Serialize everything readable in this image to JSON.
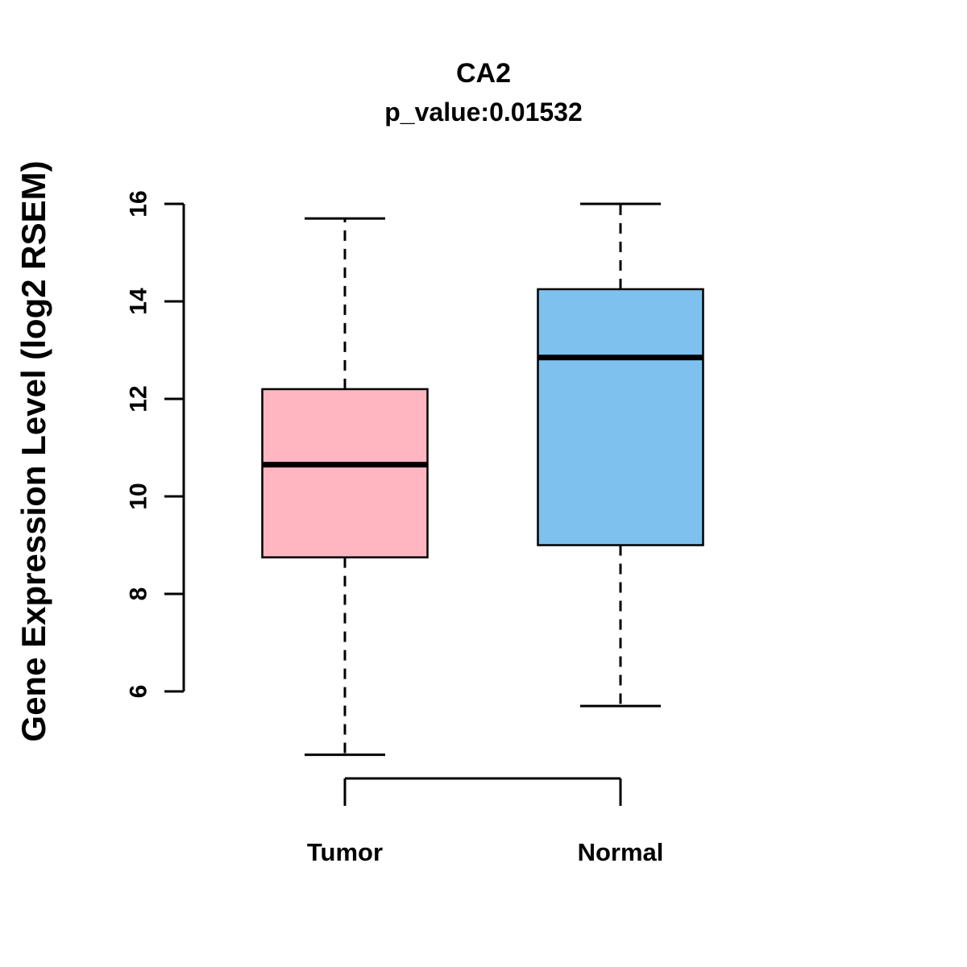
{
  "chart_data": {
    "type": "boxplot",
    "title": "CA2",
    "subtitle": "p_value:0.01532",
    "ylabel": "Gene Expression Level (log2 RSEM)",
    "xlabel": "",
    "categories": [
      "Tumor",
      "Normal"
    ],
    "yticks": [
      6,
      8,
      10,
      12,
      14,
      16
    ],
    "ylim": [
      4.4,
      16.2
    ],
    "grid": false,
    "legend": "none",
    "series": [
      {
        "name": "Tumor",
        "color": "#FFB6C1",
        "whisker_low": 4.7,
        "q1": 8.75,
        "median": 10.65,
        "q3": 12.2,
        "whisker_high": 15.7
      },
      {
        "name": "Normal",
        "color": "#7EC0EE",
        "whisker_low": 5.7,
        "q1": 9.0,
        "median": 12.85,
        "q3": 14.25,
        "whisker_high": 16.0
      }
    ],
    "colors": {
      "box_border": "#000000",
      "median_line": "#000000",
      "axis": "#000000",
      "tumor_fill": "#FFB6C1",
      "normal_fill": "#7EC0EE"
    }
  }
}
